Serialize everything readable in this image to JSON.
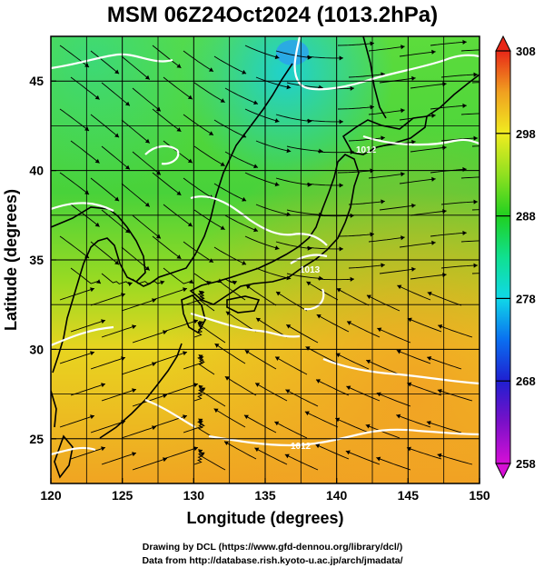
{
  "title": "MSM 06Z24Oct2024 (1013.2hPa)",
  "x_axis": {
    "label": "Longitude (degrees)",
    "range": [
      120,
      150
    ],
    "ticks": [
      "120",
      "125",
      "130",
      "135",
      "140",
      "145",
      "150"
    ]
  },
  "y_axis": {
    "label": "Latitude  (degrees)",
    "range": [
      22.5,
      47.5
    ],
    "ticks": [
      "25",
      "30",
      "35",
      "40",
      "45"
    ]
  },
  "colorbar": {
    "range": [
      258,
      308
    ],
    "ticks": [
      "258",
      "268",
      "278",
      "288",
      "298",
      "308"
    ],
    "stops": [
      {
        "v": 258,
        "c": "#d60fd6"
      },
      {
        "v": 263,
        "c": "#7a10c8"
      },
      {
        "v": 268,
        "c": "#1f1fd0"
      },
      {
        "v": 273,
        "c": "#0a6ff0"
      },
      {
        "v": 278,
        "c": "#10d8e8"
      },
      {
        "v": 283,
        "c": "#10e090"
      },
      {
        "v": 288,
        "c": "#20d020"
      },
      {
        "v": 293,
        "c": "#90e020"
      },
      {
        "v": 298,
        "c": "#f0ec20"
      },
      {
        "v": 303,
        "c": "#f0a020"
      },
      {
        "v": 308,
        "c": "#e82818"
      }
    ]
  },
  "isobar_labels": [
    "1012",
    "1013",
    "1012"
  ],
  "credits": {
    "line1": "Drawing by DCL (https://www.gfd-dennou.org/library/dcl/)",
    "line2": "Data from http://database.rish.kyoto-u.ac.jp/arch/jmadata/"
  },
  "colors": {
    "coast": "#000000",
    "isobar": "#ffffff",
    "streamline": "#000000"
  }
}
